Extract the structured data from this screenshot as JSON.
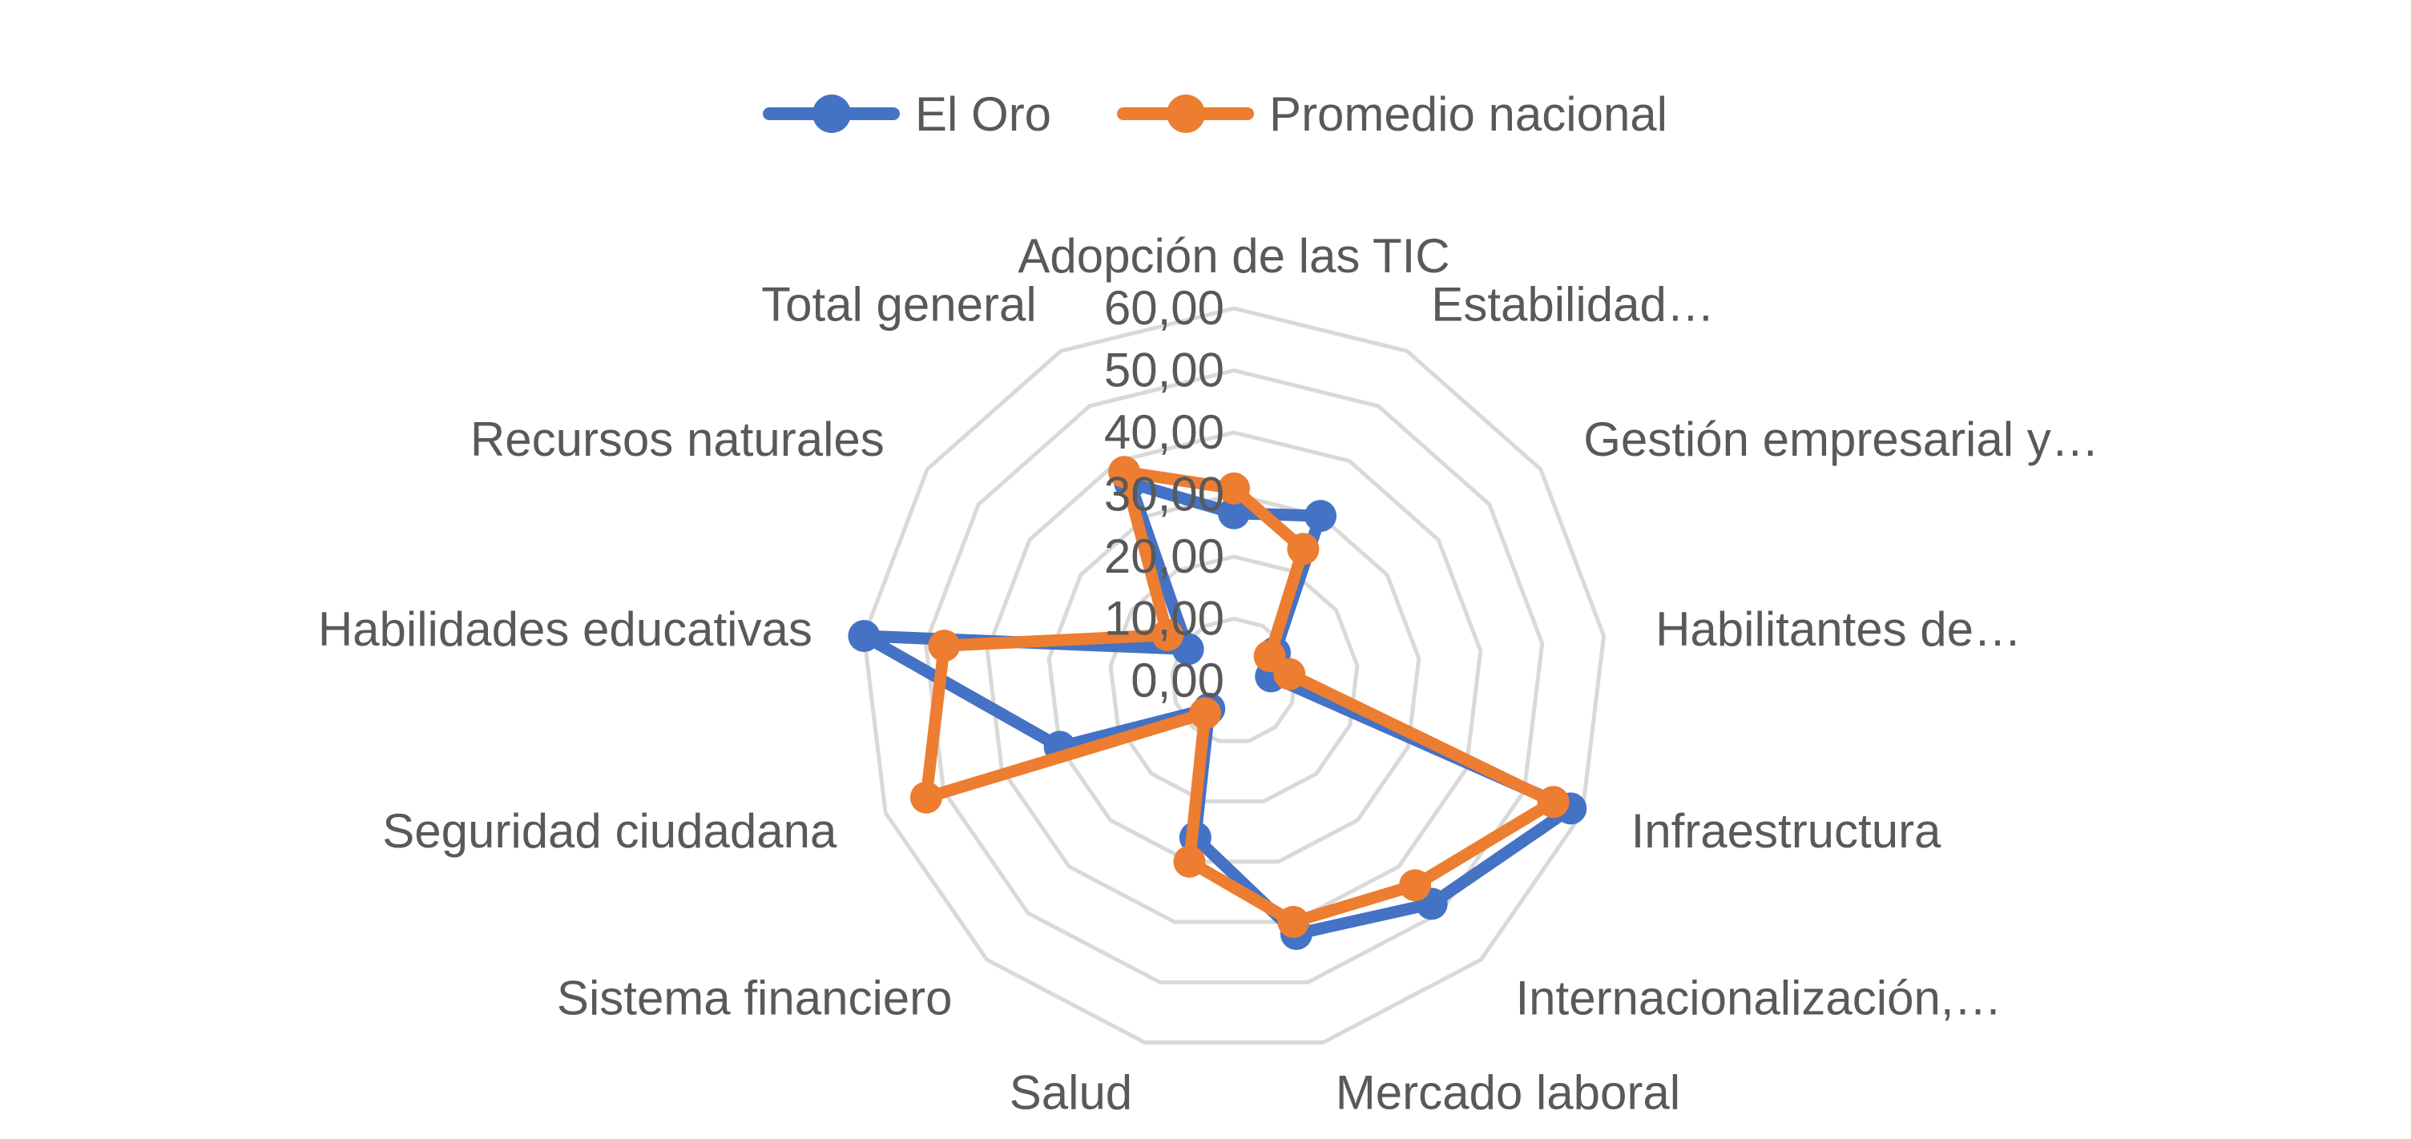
{
  "chart_data": {
    "type": "radar",
    "title": "",
    "categories": [
      "Adopción de las TIC",
      "Estabilidad…",
      "Gestión empresarial y…",
      "Habilitantes de…",
      "Infraestructura",
      "Internacionalización,…",
      "Mercado laboral",
      "Salud",
      "Sistema financiero",
      "Seguridad ciudadana",
      "Habilidades educativas",
      "Recursos naturales",
      "Total general"
    ],
    "series": [
      {
        "name": "El Oro",
        "color": "#4472C4",
        "values": [
          27.0,
          30.0,
          8.0,
          6.0,
          58.0,
          48.0,
          42.0,
          26.0,
          6.0,
          30.0,
          60.0,
          9.0,
          36.0
        ]
      },
      {
        "name": "Promedio nacional",
        "color": "#ED7D31",
        "values": [
          31.0,
          24.0,
          7.0,
          9.0,
          55.0,
          44.0,
          40.0,
          30.0,
          7.0,
          53.0,
          47.0,
          13.0,
          38.0
        ]
      }
    ],
    "r_ticks": [
      "0,00",
      "10,00",
      "20,00",
      "30,00",
      "40,00",
      "50,00",
      "60,00"
    ],
    "r_range": [
      0,
      60
    ],
    "grid": true,
    "legend_position": "top"
  }
}
